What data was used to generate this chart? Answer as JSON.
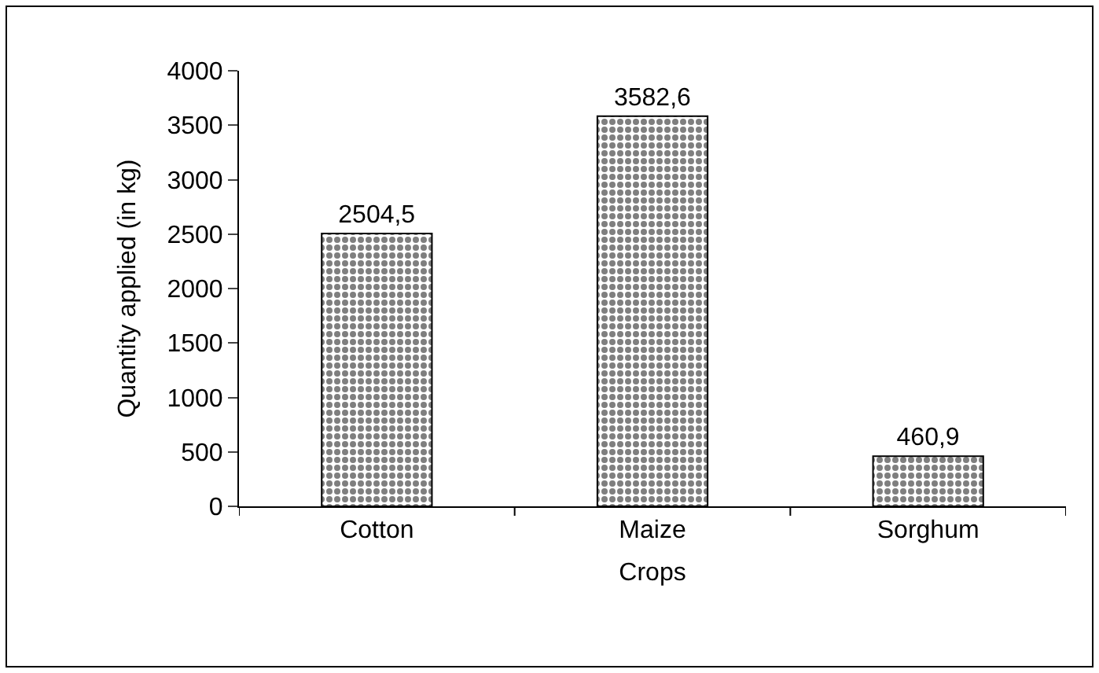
{
  "chart_data": {
    "type": "bar",
    "categories": [
      "Cotton",
      "Maize",
      "Sorghum"
    ],
    "values": [
      2504.5,
      3582.6,
      460.9
    ],
    "value_labels": [
      "2504,5",
      "3582,6",
      "460,9"
    ],
    "color": "#000000",
    "xlabel": "Crops",
    "ylabel": "Quantity applied (in kg)",
    "ylim": [
      0,
      4000
    ],
    "yticks": [
      0,
      500,
      1000,
      1500,
      2000,
      2500,
      3000,
      3500,
      4000
    ],
    "grid": false,
    "legend": false
  }
}
